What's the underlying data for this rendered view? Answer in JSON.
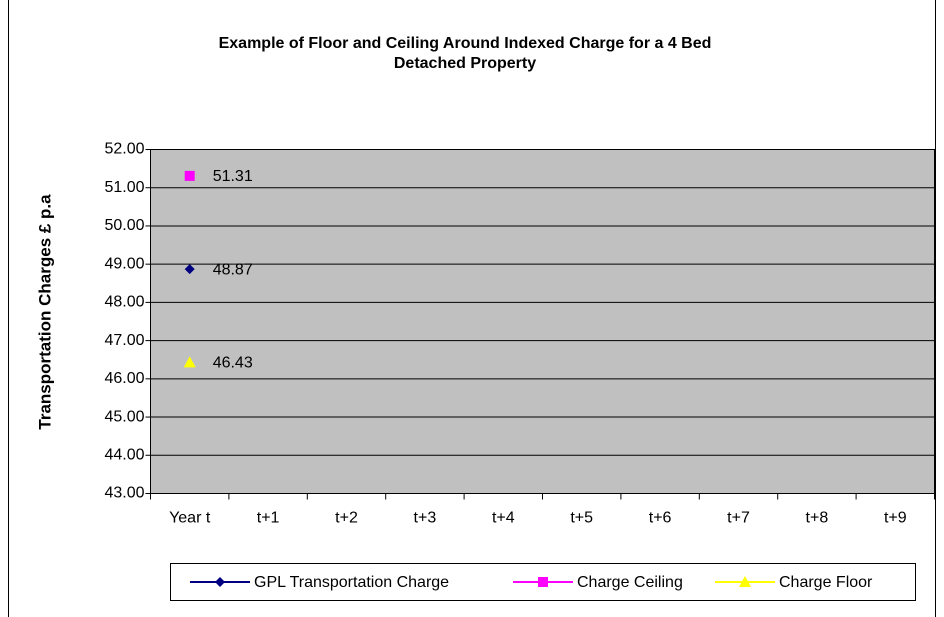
{
  "chart_data": {
    "type": "line",
    "title": [
      "Example of Floor and Ceiling Around Indexed Charge for a 4 Bed",
      "Detached Property"
    ],
    "y_label": "Transportation Charges £ p.a",
    "categories": [
      "Year t",
      "t+1",
      "t+2",
      "t+3",
      "t+4",
      "t+5",
      "t+6",
      "t+7",
      "t+8",
      "t+9"
    ],
    "series": [
      {
        "name": "GPL Transportation Charge",
        "color": "#000080",
        "marker": "diamond",
        "values": [
          48.87,
          null,
          null,
          null,
          null,
          null,
          null,
          null,
          null,
          null
        ]
      },
      {
        "name": "Charge Ceiling",
        "color": "#ff00ff",
        "marker": "square",
        "values": [
          51.31,
          null,
          null,
          null,
          null,
          null,
          null,
          null,
          null,
          null
        ]
      },
      {
        "name": "Charge Floor",
        "color": "#ffff00",
        "marker": "triangle",
        "values": [
          46.43,
          null,
          null,
          null,
          null,
          null,
          null,
          null,
          null,
          null
        ]
      }
    ],
    "ylim": [
      43,
      52
    ],
    "yticks": [
      {
        "value": 43,
        "label": "43.00"
      },
      {
        "value": 44,
        "label": "44.00"
      },
      {
        "value": 45,
        "label": "45.00"
      },
      {
        "value": 46,
        "label": "46.00"
      },
      {
        "value": 47,
        "label": "47.00"
      },
      {
        "value": 48,
        "label": "48.00"
      },
      {
        "value": 49,
        "label": "49.00"
      },
      {
        "value": 50,
        "label": "50.00"
      },
      {
        "value": 51,
        "label": "51.00"
      },
      {
        "value": 52,
        "label": "52.00"
      }
    ],
    "grid": true,
    "plot_background": "#c0c0c0",
    "legend": "bottom"
  }
}
